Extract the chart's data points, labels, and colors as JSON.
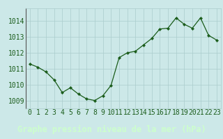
{
  "x": [
    0,
    1,
    2,
    3,
    4,
    5,
    6,
    7,
    8,
    9,
    10,
    11,
    12,
    13,
    14,
    15,
    16,
    17,
    18,
    19,
    20,
    21,
    22,
    23
  ],
  "y": [
    1011.3,
    1011.1,
    1010.8,
    1010.3,
    1009.5,
    1009.8,
    1009.4,
    1009.1,
    1009.0,
    1009.3,
    1009.95,
    1011.7,
    1012.0,
    1012.1,
    1012.5,
    1012.9,
    1013.5,
    1013.55,
    1014.2,
    1013.8,
    1013.55,
    1014.2,
    1013.1,
    1012.8
  ],
  "line_color": "#1a5c1a",
  "marker_color": "#1a5c1a",
  "bg_color": "#cce8e8",
  "grid_color": "#aacccc",
  "xlabel": "Graphe pression niveau de la mer (hPa)",
  "xlabel_color": "#ccffcc",
  "xlabel_bg": "#1a5c1a",
  "tick_color": "#1a5c1a",
  "ylim": [
    1008.5,
    1014.8
  ],
  "yticks": [
    1009,
    1010,
    1011,
    1012,
    1013,
    1014
  ],
  "xticks": [
    0,
    1,
    2,
    3,
    4,
    5,
    6,
    7,
    8,
    9,
    10,
    11,
    12,
    13,
    14,
    15,
    16,
    17,
    18,
    19,
    20,
    21,
    22,
    23
  ],
  "font_size_xlabel": 8.5,
  "font_size_ticks": 7
}
